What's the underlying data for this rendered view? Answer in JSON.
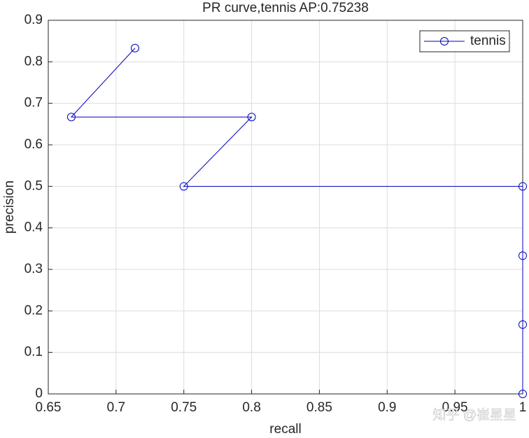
{
  "chart_data": {
    "type": "line",
    "title": "PR curve,tennis AP:0.75238",
    "x_label": "recall",
    "y_label": "precision",
    "x": [
      0.714,
      0.667,
      0.8,
      0.75,
      1,
      1,
      1,
      1
    ],
    "series": [
      {
        "name": "tennis",
        "color": "#0000bf",
        "values": [
          0.833,
          0.667,
          0.667,
          0.5,
          0.5,
          0.333,
          0.167,
          0
        ]
      }
    ],
    "xlim": [
      0.65,
      1
    ],
    "xticks": [
      0.65,
      0.7,
      0.75,
      0.8,
      0.85,
      0.9,
      0.95,
      1
    ],
    "ylim": [
      0,
      0.9
    ],
    "yticks": [
      0,
      0.1,
      0.2,
      0.3,
      0.4,
      0.5,
      0.6,
      0.7,
      0.8,
      0.9
    ],
    "grid": true,
    "legend": "top-right",
    "marker": "circle",
    "watermark": "知乎 @崔星星"
  }
}
